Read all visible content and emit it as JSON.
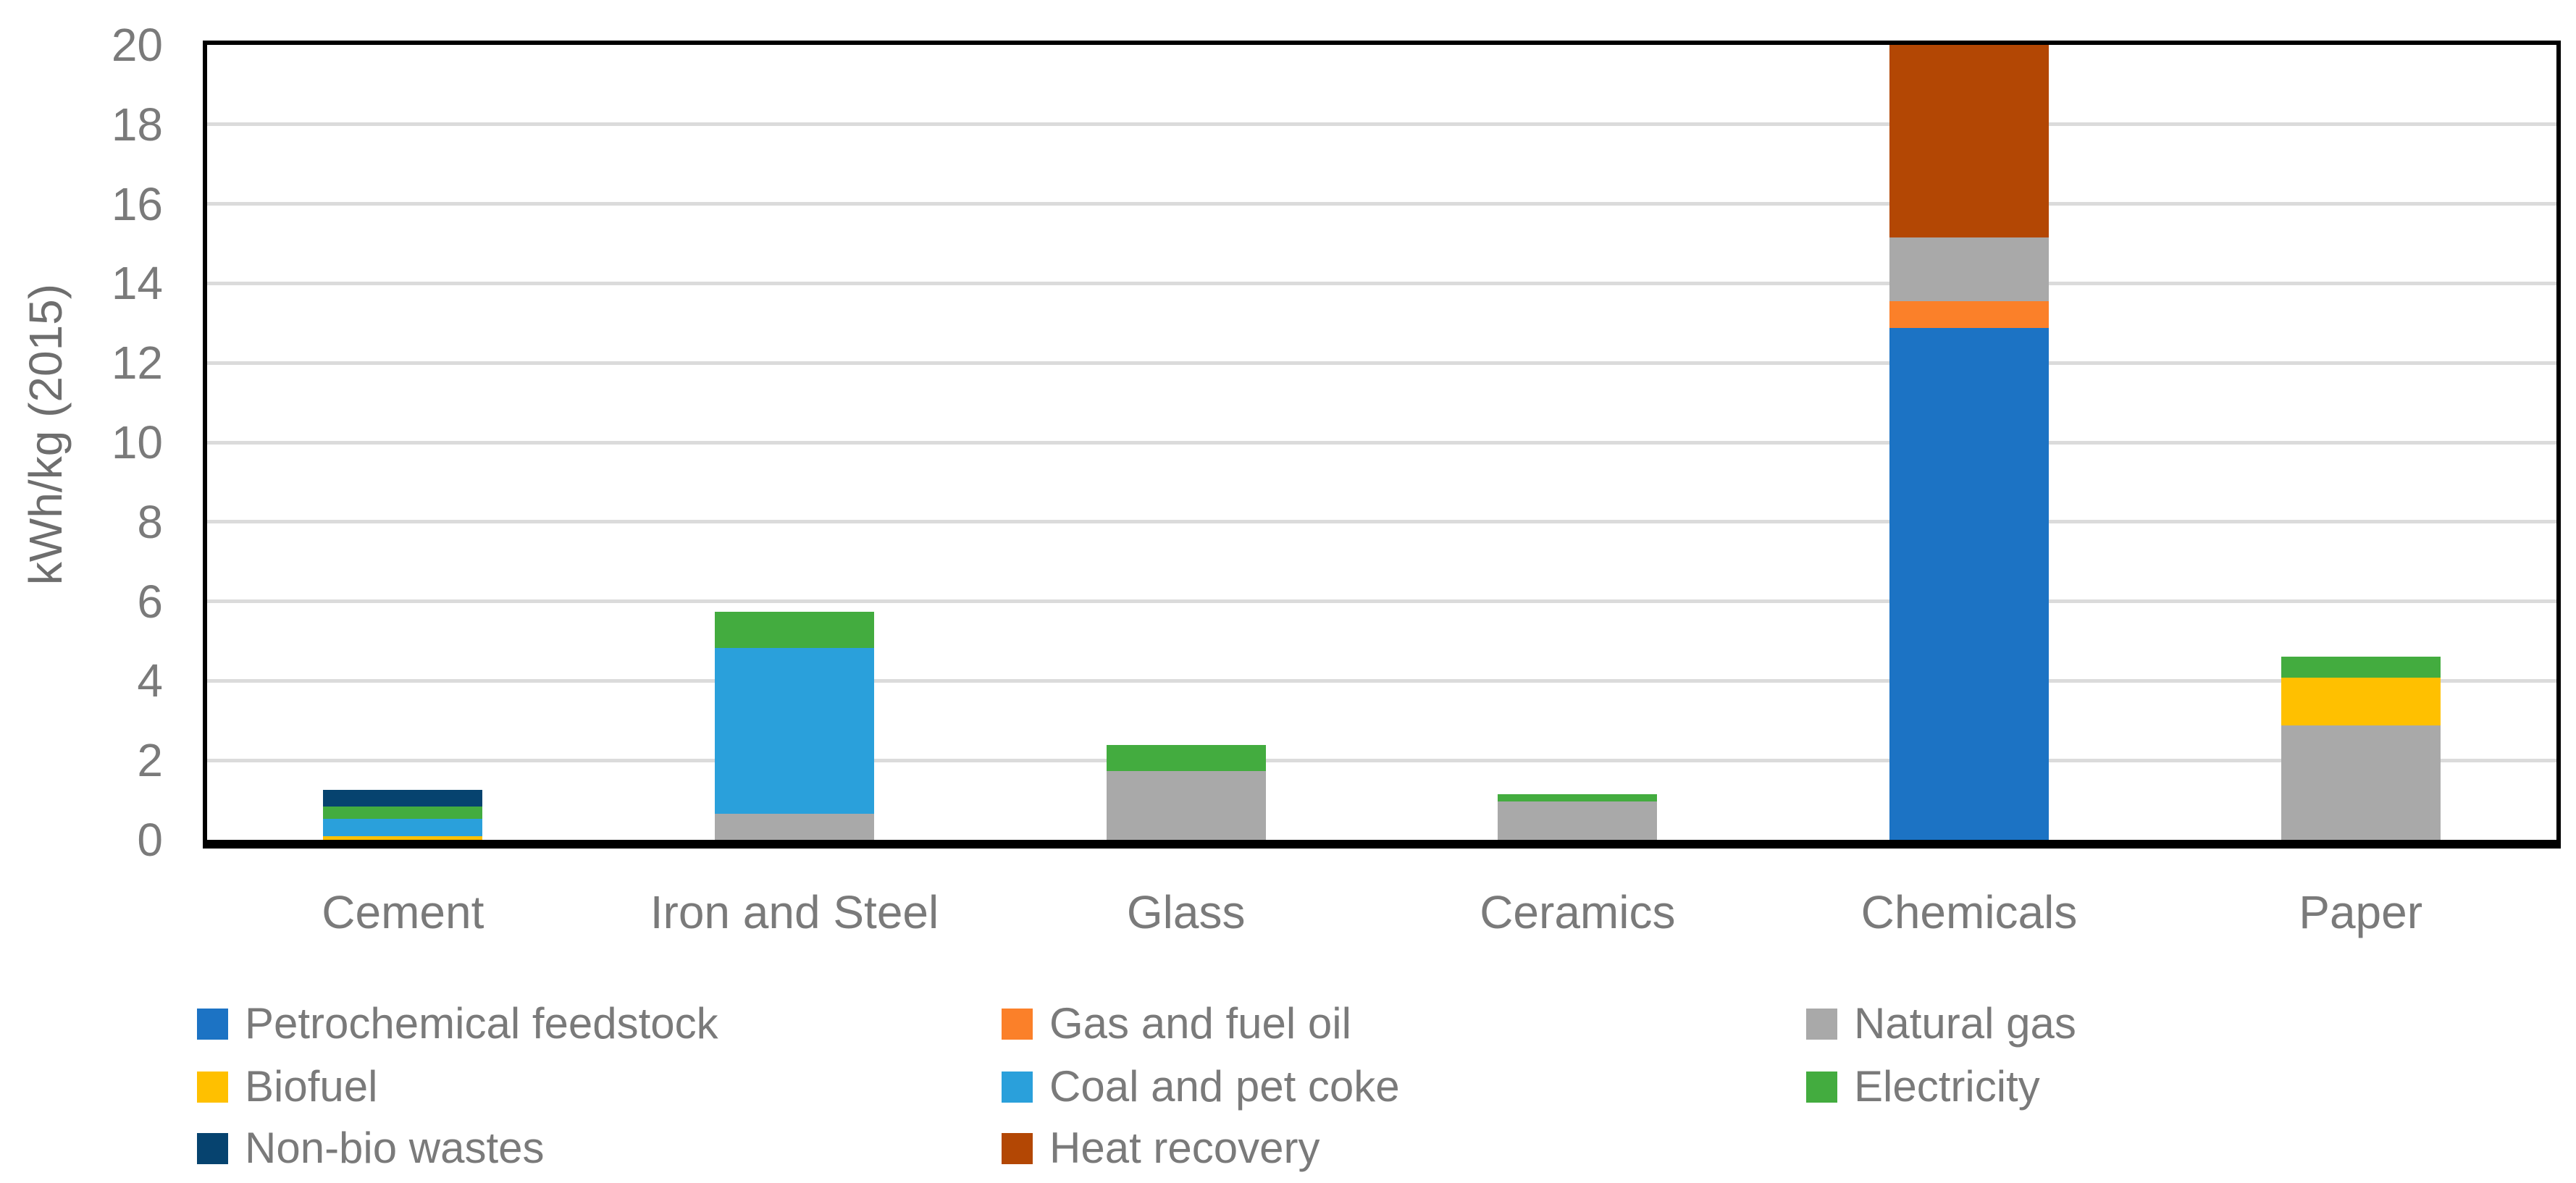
{
  "chart_data": {
    "type": "bar",
    "stacked": true,
    "title": "",
    "ylabel": "kWh/kg (2015)",
    "xlabel": "",
    "ylim": [
      0,
      20
    ],
    "yticks": [
      0,
      2,
      4,
      6,
      8,
      10,
      12,
      14,
      16,
      18,
      20
    ],
    "grid": "horizontal",
    "legend_position": "bottom",
    "legend_columns": 3,
    "legend_order": "row-major",
    "stack_order": "bottom-to-top in series order",
    "categories": [
      "Cement",
      "Iron and Steel",
      "Glass",
      "Ceramics",
      "Chemicals",
      "Paper"
    ],
    "series": [
      {
        "name": "Petrochemical feedstock",
        "color": "#1C73C4",
        "values": [
          0,
          0,
          0,
          0,
          12.88,
          0
        ]
      },
      {
        "name": "Gas and fuel oil",
        "color": "#FB8029",
        "values": [
          0,
          0,
          0,
          0,
          0.67,
          0
        ]
      },
      {
        "name": "Natural gas",
        "color": "#A9A9A9",
        "values": [
          0,
          0.65,
          1.73,
          0.97,
          1.6,
          2.88
        ]
      },
      {
        "name": "Biofuel",
        "color": "#FFC000",
        "values": [
          0.1,
          0,
          0,
          0,
          0,
          1.2
        ]
      },
      {
        "name": "Coal and pet coke",
        "color": "#2AA0DB",
        "values": [
          0.42,
          4.18,
          0,
          0,
          0,
          0
        ]
      },
      {
        "name": "Electricity",
        "color": "#43AC3F",
        "values": [
          0.32,
          0.9,
          0.66,
          0.17,
          0,
          0.53
        ]
      },
      {
        "name": "Non-bio wastes",
        "color": "#06436F",
        "values": [
          0.42,
          0,
          0,
          0,
          0,
          0
        ]
      },
      {
        "name": "Heat recovery",
        "color": "#B34704",
        "values": [
          0,
          0,
          0,
          0,
          4.85,
          0
        ]
      }
    ],
    "totals": [
      1.26,
      5.73,
      2.39,
      1.14,
      20.0,
      4.61
    ],
    "note": "Chemicals stack reaches the axis maximum of 20"
  },
  "colors": {
    "gridline": "#DBDBDB",
    "axis_border": "#000000",
    "tick_text": "#7A7A7A",
    "axis_title_text": "#6E6E6E"
  }
}
